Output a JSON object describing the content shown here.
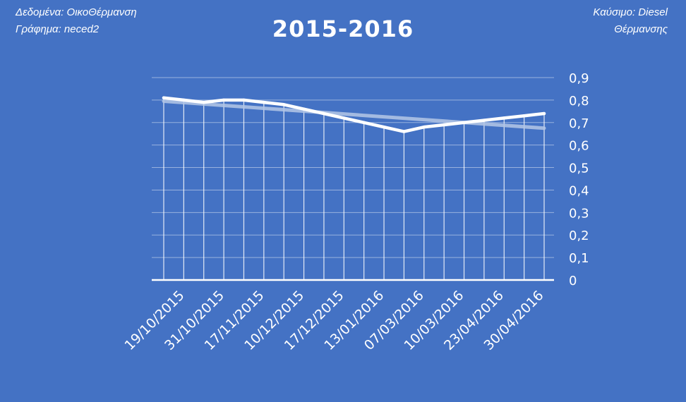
{
  "header": {
    "data_source": "Δεδομένα: ΟικοΘέρμανση",
    "chart_by": "Γράφημα: neced2",
    "fuel_line1": "Καύσιμο: Diesel",
    "fuel_line2": "Θέρμανσης"
  },
  "colors": {
    "background": "#4472c4",
    "line": "#ffffff",
    "trendline": "#b4c7e7",
    "grid": "#ffffff"
  },
  "chart_data": {
    "type": "line",
    "title": "2015-2016",
    "x_tick_labels": [
      "19/10/2015",
      "31/10/2015",
      "17/11/2015",
      "10/12/2015",
      "17/12/2015",
      "13/01/2016",
      "07/03/2016",
      "10/03/2016",
      "23/04/2016",
      "30/04/2016"
    ],
    "series": [
      {
        "values": [
          0.81,
          0.8,
          0.79,
          0.8,
          0.8,
          0.79,
          0.78,
          0.76,
          0.74,
          0.72,
          0.7,
          0.68,
          0.66,
          0.68,
          0.69,
          0.7,
          0.71,
          0.72,
          0.73,
          0.74
        ]
      }
    ],
    "trendline": {
      "type": "linear",
      "start": 0.795,
      "end": 0.675
    },
    "ylim": [
      0,
      0.9
    ],
    "y_ticks": [
      "0",
      "0,1",
      "0,2",
      "0,3",
      "0,4",
      "0,5",
      "0,6",
      "0,7",
      "0,8",
      "0,9"
    ],
    "y_axis_side": "right",
    "grid": true,
    "legend": "none"
  }
}
